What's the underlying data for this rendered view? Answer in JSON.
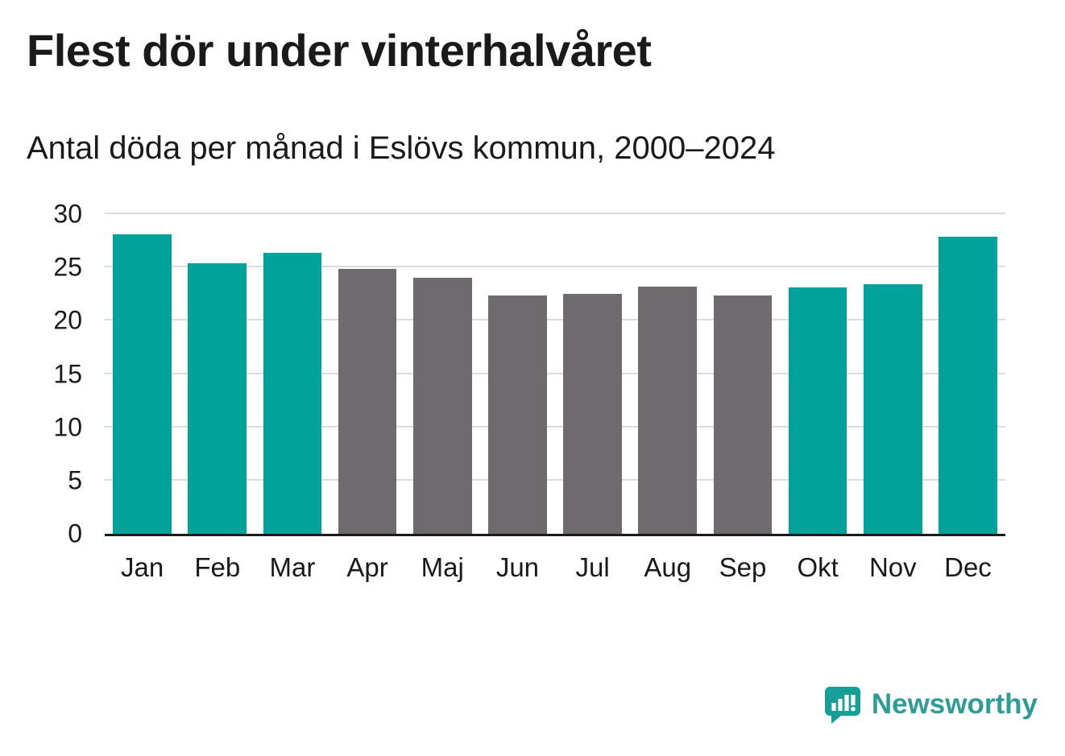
{
  "chart_data": {
    "type": "bar",
    "title": "Flest dör under vinterhalvåret",
    "subtitle": "Antal döda per månad i Eslövs kommun, 2000–2024",
    "categories": [
      "Jan",
      "Feb",
      "Mar",
      "Apr",
      "Maj",
      "Jun",
      "Jul",
      "Aug",
      "Sep",
      "Okt",
      "Nov",
      "Dec"
    ],
    "values": [
      28.1,
      25.4,
      26.4,
      24.9,
      24.0,
      22.4,
      22.5,
      23.2,
      22.4,
      23.1,
      23.4,
      27.9
    ],
    "highlight": [
      true,
      true,
      true,
      false,
      false,
      false,
      false,
      false,
      false,
      true,
      true,
      true
    ],
    "xlabel": "",
    "ylabel": "",
    "ylim": [
      0,
      30
    ],
    "yticks": [
      0,
      5,
      10,
      15,
      20,
      25,
      30
    ],
    "grid": "horizontal",
    "legend": "none",
    "colors": {
      "highlight_bar": "#00a29a",
      "default_bar": "#6e6a6e",
      "grid_line": "#dcdcdc",
      "axis_line": "#1a1a1a"
    }
  },
  "branding": {
    "label": "Newsworthy",
    "icon": "newsworthy-logo-icon",
    "color": "#2d9c95"
  }
}
